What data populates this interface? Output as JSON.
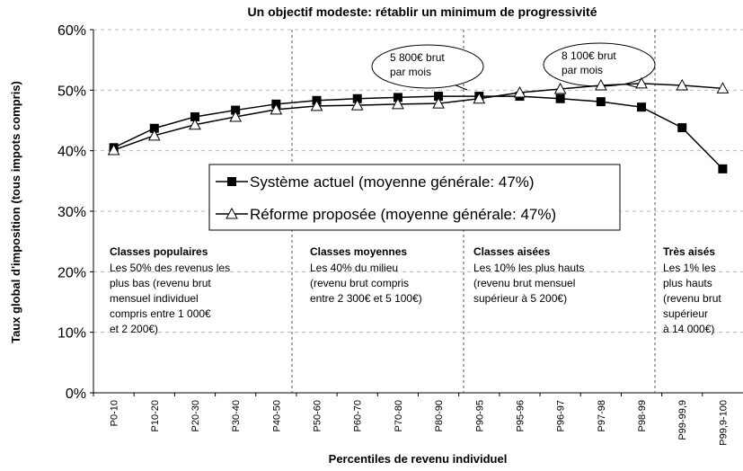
{
  "chart_data": {
    "type": "line",
    "title": "Un objectif modeste: rétablir un minimum de progressivité",
    "y_label": "Taux global d'imposition (tous impots compris)",
    "x_label": "Percentiles de revenu individuel",
    "categories": [
      "P0-10",
      "P10-20",
      "P20-30",
      "P30-40",
      "P40-50",
      "P50-60",
      "P60-70",
      "P70-80",
      "P80-90",
      "P90-95",
      "P95-96",
      "P96-97",
      "P97-98",
      "P98-99",
      "P99-99,9",
      "P99,9-100"
    ],
    "series": [
      {
        "name": "Système actuel (moyenne générale: 47%)",
        "color": "#000000",
        "marker": "square",
        "values": [
          40.5,
          43.7,
          45.6,
          46.7,
          47.7,
          48.3,
          48.6,
          48.8,
          49.0,
          49.0,
          49.0,
          48.6,
          48.1,
          47.2,
          43.8,
          37.0
        ]
      },
      {
        "name": "Réforme proposée (moyenne générale: 47%)",
        "color": "#000000",
        "marker": "triangle",
        "values": [
          40.1,
          42.5,
          44.3,
          45.6,
          46.8,
          47.4,
          47.5,
          47.7,
          47.8,
          48.6,
          49.6,
          50.2,
          50.8,
          51.1,
          50.8,
          50.3
        ]
      }
    ],
    "ylim": [
      0,
      60
    ],
    "yticks": [
      {
        "value": 0,
        "label": "0%"
      },
      {
        "value": 10,
        "label": "10%"
      },
      {
        "value": 20,
        "label": "20%"
      },
      {
        "value": 30,
        "label": "30%"
      },
      {
        "value": 40,
        "label": "40%"
      },
      {
        "value": 50,
        "label": "50%"
      },
      {
        "value": 60,
        "label": "60%"
      }
    ],
    "grid": true,
    "callouts": [
      [
        "5 800€ brut",
        "par mois"
      ],
      [
        "8 100€ brut",
        "par mois"
      ]
    ],
    "sections": [
      {
        "title": "Classes populaires",
        "lines": [
          "Les 50% des revenus les",
          "plus bas (revenu brut",
          "mensuel individuel",
          "compris entre 1 000€",
          "et 2 200€)"
        ]
      },
      {
        "title": "Classes moyennes",
        "lines": [
          "Les 40% du milieu",
          "(revenu brut compris",
          "entre 2 300€ et 5 100€)"
        ]
      },
      {
        "title": "Classes aisées",
        "lines": [
          "Les 10% les plus hauts",
          "(revenu brut mensuel",
          "supérieur à 5 200€)"
        ]
      },
      {
        "title": "Très aisés",
        "lines": [
          "Les 1% les",
          "plus hauts",
          "(revenu brut",
          "supérieur",
          "à 14 000€)"
        ]
      }
    ]
  }
}
